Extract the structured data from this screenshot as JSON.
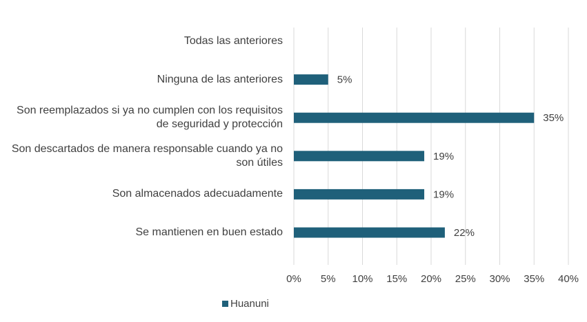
{
  "chart_data": {
    "type": "bar",
    "orientation": "horizontal",
    "categories": [
      "Todas las anteriores",
      "Ninguna de las anteriores",
      "Son reemplazados si ya no cumplen con los requisitos de seguridad y protección",
      "Son descartados de manera responsable cuando ya no son útiles",
      "Son almacenados adecuadamente",
      "Se mantienen en buen estado"
    ],
    "series": [
      {
        "name": "Huanuni",
        "color": "#1f607a",
        "values": [
          null,
          5,
          35,
          19,
          19,
          22
        ],
        "value_labels": [
          null,
          "5%",
          "35%",
          "19%",
          "19%",
          "22%"
        ]
      }
    ],
    "xlim": [
      0,
      40
    ],
    "xticks": [
      {
        "value": 0,
        "label": "0%"
      },
      {
        "value": 5,
        "label": "5%"
      },
      {
        "value": 10,
        "label": "10%"
      },
      {
        "value": 15,
        "label": "15%"
      },
      {
        "value": 20,
        "label": "20%"
      },
      {
        "value": 25,
        "label": "25%"
      },
      {
        "value": 30,
        "label": "30%"
      },
      {
        "value": 35,
        "label": "35%"
      },
      {
        "value": 40,
        "label": "40%"
      }
    ],
    "grid": true,
    "legend": "bottom"
  }
}
